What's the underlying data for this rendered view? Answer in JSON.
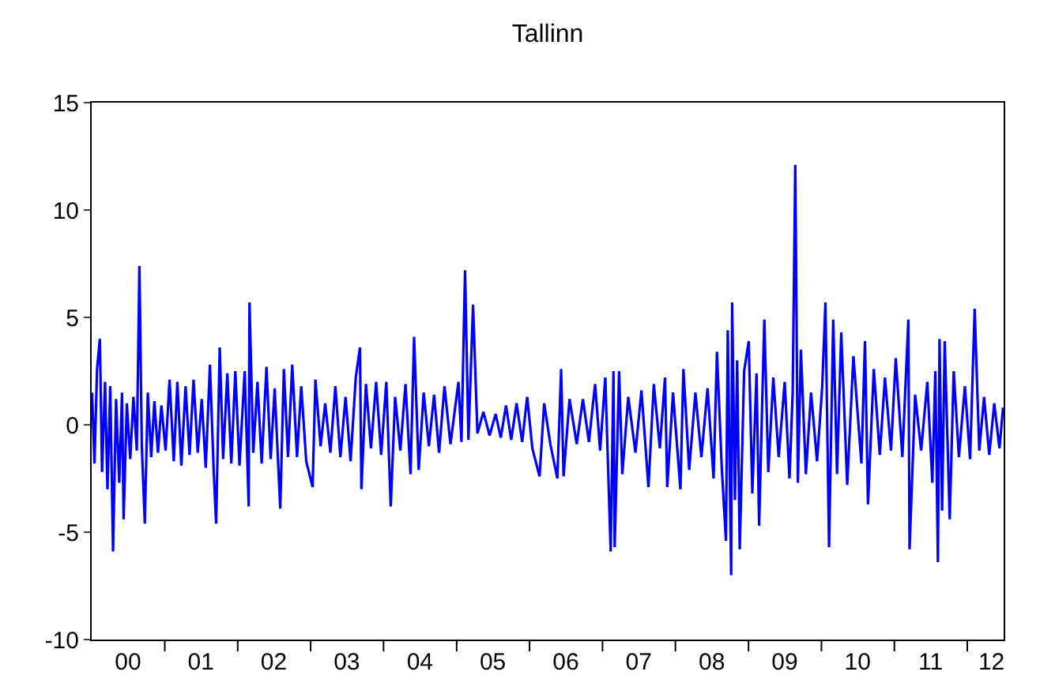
{
  "chart_data": {
    "type": "line",
    "title": "Tallinn",
    "grid": false,
    "marker": "none",
    "line_style": "solid",
    "xlim": [
      "2000-01-01",
      "2012-07-01"
    ],
    "xticks": [
      {
        "value": "2000-07-01",
        "label": "00"
      },
      {
        "value": "2001-01-01",
        "label": null
      },
      {
        "value": "2001-07-01",
        "label": "01"
      },
      {
        "value": "2002-01-01",
        "label": null
      },
      {
        "value": "2002-07-01",
        "label": "02"
      },
      {
        "value": "2003-01-01",
        "label": null
      },
      {
        "value": "2003-07-01",
        "label": "03"
      },
      {
        "value": "2004-01-01",
        "label": null
      },
      {
        "value": "2004-07-01",
        "label": "04"
      },
      {
        "value": "2005-01-01",
        "label": null
      },
      {
        "value": "2005-07-01",
        "label": "05"
      },
      {
        "value": "2006-01-01",
        "label": null
      },
      {
        "value": "2006-07-01",
        "label": "06"
      },
      {
        "value": "2007-01-01",
        "label": null
      },
      {
        "value": "2007-07-01",
        "label": "07"
      },
      {
        "value": "2008-01-01",
        "label": null
      },
      {
        "value": "2008-07-01",
        "label": "08"
      },
      {
        "value": "2009-01-01",
        "label": null
      },
      {
        "value": "2009-07-01",
        "label": "09"
      },
      {
        "value": "2010-01-01",
        "label": null
      },
      {
        "value": "2010-07-01",
        "label": "10"
      },
      {
        "value": "2011-01-01",
        "label": null
      },
      {
        "value": "2011-07-01",
        "label": "11"
      },
      {
        "value": "2012-01-01",
        "label": null
      },
      {
        "value": "2012-05-01",
        "label": "12"
      }
    ],
    "ylim": [
      -10,
      15
    ],
    "yticks": [
      -10,
      -5,
      0,
      5,
      10,
      15
    ],
    "x": [
      "2000-01-03",
      "2000-01-15",
      "2000-01-28",
      "2000-02-11",
      "2000-02-22",
      "2000-03-08",
      "2000-03-20",
      "2000-04-03",
      "2000-04-17",
      "2000-05-02",
      "2000-05-18",
      "2000-06-01",
      "2000-06-09",
      "2000-06-25",
      "2000-07-12",
      "2000-07-28",
      "2000-08-14",
      "2000-08-27",
      "2000-09-08",
      "2000-09-23",
      "2000-10-08",
      "2000-10-25",
      "2000-11-10",
      "2000-11-28",
      "2000-12-15",
      "2001-01-05",
      "2001-01-25",
      "2001-02-15",
      "2001-03-05",
      "2001-03-25",
      "2001-04-15",
      "2001-05-05",
      "2001-05-25",
      "2001-06-15",
      "2001-07-05",
      "2001-07-25",
      "2001-08-15",
      "2001-09-03",
      "2001-09-15",
      "2001-10-03",
      "2001-10-20",
      "2001-11-10",
      "2001-11-30",
      "2001-12-20",
      "2002-01-10",
      "2002-02-05",
      "2002-02-25",
      "2002-03-01",
      "2002-03-20",
      "2002-04-10",
      "2002-05-01",
      "2002-05-25",
      "2002-06-15",
      "2002-07-05",
      "2002-08-02",
      "2002-08-20",
      "2002-09-10",
      "2002-10-01",
      "2002-10-25",
      "2002-11-15",
      "2002-12-10",
      "2003-01-11",
      "2003-01-25",
      "2003-02-20",
      "2003-03-15",
      "2003-04-10",
      "2003-05-05",
      "2003-05-30",
      "2003-06-25",
      "2003-07-20",
      "2003-08-15",
      "2003-09-05",
      "2003-09-12",
      "2003-10-05",
      "2003-10-30",
      "2003-11-25",
      "2003-12-20",
      "2004-01-15",
      "2004-02-06",
      "2004-02-28",
      "2004-03-25",
      "2004-04-20",
      "2004-05-15",
      "2004-06-02",
      "2004-06-25",
      "2004-07-20",
      "2004-08-15",
      "2004-09-10",
      "2004-10-05",
      "2004-11-01",
      "2004-12-01",
      "2005-01-10",
      "2005-01-25",
      "2005-02-12",
      "2005-03-01",
      "2005-03-24",
      "2005-04-15",
      "2005-05-15",
      "2005-06-15",
      "2005-07-15",
      "2005-08-10",
      "2005-09-05",
      "2005-10-01",
      "2005-10-28",
      "2005-11-25",
      "2005-12-20",
      "2006-01-15",
      "2006-02-20",
      "2006-03-15",
      "2006-04-15",
      "2006-05-20",
      "2006-06-08",
      "2006-06-20",
      "2006-07-20",
      "2006-08-25",
      "2006-09-25",
      "2006-10-25",
      "2006-11-25",
      "2006-12-20",
      "2007-01-15",
      "2007-02-11",
      "2007-02-25",
      "2007-03-03",
      "2007-03-25",
      "2007-04-10",
      "2007-05-10",
      "2007-06-15",
      "2007-07-15",
      "2007-08-19",
      "2007-09-15",
      "2007-10-15",
      "2007-11-10",
      "2007-11-21",
      "2007-12-20",
      "2008-01-26",
      "2008-02-10",
      "2008-03-10",
      "2008-04-10",
      "2008-05-10",
      "2008-06-10",
      "2008-07-10",
      "2008-07-27",
      "2008-08-20",
      "2008-09-10",
      "2008-09-19",
      "2008-10-06",
      "2008-10-11",
      "2008-10-25",
      "2008-11-05",
      "2008-11-18",
      "2008-12-10",
      "2009-01-02",
      "2009-01-20",
      "2009-02-10",
      "2009-02-23",
      "2009-03-21",
      "2009-04-10",
      "2009-05-05",
      "2009-06-01",
      "2009-07-01",
      "2009-07-25",
      "2009-08-10",
      "2009-08-23",
      "2009-09-05",
      "2009-09-20",
      "2009-10-15",
      "2009-11-10",
      "2009-12-10",
      "2010-01-05",
      "2010-01-21",
      "2010-02-08",
      "2010-03-01",
      "2010-03-20",
      "2010-04-10",
      "2010-05-10",
      "2010-06-10",
      "2010-07-20",
      "2010-08-07",
      "2010-08-22",
      "2010-09-20",
      "2010-10-20",
      "2010-11-15",
      "2010-12-15",
      "2011-01-08",
      "2011-02-10",
      "2011-03-12",
      "2011-03-18",
      "2011-04-15",
      "2011-05-15",
      "2011-06-15",
      "2011-07-10",
      "2011-07-25",
      "2011-08-07",
      "2011-08-15",
      "2011-08-28",
      "2011-09-10",
      "2011-10-05",
      "2011-10-25",
      "2011-11-20",
      "2011-12-20",
      "2012-01-15",
      "2012-02-07",
      "2012-03-01",
      "2012-03-25",
      "2012-04-20",
      "2012-05-15",
      "2012-06-10",
      "2012-06-28"
    ],
    "series": [
      {
        "color": "#0000ff",
        "values": [
          1.5,
          -1.8,
          2.6,
          4.0,
          -2.2,
          2.0,
          -3.0,
          1.8,
          -5.9,
          1.2,
          -2.7,
          1.5,
          -4.4,
          1.0,
          -1.6,
          1.3,
          -1.2,
          7.4,
          -1.0,
          -4.6,
          1.5,
          -1.5,
          1.1,
          -1.3,
          0.9,
          -1.2,
          2.1,
          -1.7,
          2.0,
          -1.9,
          1.8,
          -1.4,
          2.1,
          -1.3,
          1.2,
          -2.0,
          2.8,
          -2.2,
          -4.6,
          3.6,
          -1.6,
          2.4,
          -1.8,
          2.5,
          -1.9,
          2.5,
          -3.8,
          5.7,
          -1.3,
          2.0,
          -1.8,
          2.7,
          -1.6,
          1.7,
          -3.9,
          2.6,
          -1.5,
          2.8,
          -1.5,
          1.8,
          -1.7,
          -2.9,
          2.1,
          -1.0,
          1.0,
          -1.3,
          1.8,
          -1.5,
          1.3,
          -1.7,
          2.2,
          3.6,
          -3.0,
          1.9,
          -1.1,
          2.0,
          -1.4,
          2.0,
          -3.8,
          1.3,
          -1.2,
          1.9,
          -2.3,
          4.1,
          -2.1,
          1.5,
          -1.0,
          1.4,
          -1.3,
          1.8,
          -0.9,
          2.0,
          -0.8,
          7.2,
          -0.7,
          5.6,
          -0.4,
          0.6,
          -0.5,
          0.5,
          -0.6,
          0.9,
          -0.7,
          1.0,
          -0.8,
          1.3,
          -1.1,
          -2.4,
          1.0,
          -0.9,
          -2.5,
          2.6,
          -2.4,
          1.2,
          -0.9,
          1.2,
          -0.8,
          1.9,
          -1.2,
          2.2,
          -5.9,
          2.5,
          -5.7,
          2.5,
          -2.3,
          1.3,
          -1.3,
          1.6,
          -2.9,
          1.9,
          -1.1,
          2.2,
          -2.9,
          1.5,
          -3.0,
          2.6,
          -2.1,
          1.5,
          -1.5,
          1.7,
          -2.5,
          3.4,
          -2.0,
          -5.4,
          4.4,
          -7.0,
          5.7,
          -3.5,
          3.0,
          -5.8,
          2.5,
          3.9,
          -3.2,
          2.4,
          -4.7,
          4.9,
          -2.2,
          2.2,
          -1.5,
          2.0,
          -2.5,
          1.5,
          12.1,
          -2.7,
          3.5,
          -2.3,
          1.5,
          -1.7,
          1.8,
          5.7,
          -5.7,
          4.9,
          -2.3,
          4.3,
          -2.8,
          3.2,
          -1.8,
          3.9,
          -3.7,
          2.6,
          -1.4,
          2.2,
          -1.2,
          3.1,
          -1.5,
          4.9,
          -5.8,
          1.4,
          -1.2,
          2.0,
          -2.7,
          2.5,
          -6.4,
          4.0,
          -4.0,
          3.9,
          -4.4,
          2.5,
          -1.5,
          1.8,
          -1.6,
          5.4,
          -1.2,
          1.3,
          -1.4,
          1.0,
          -1.1,
          0.8
        ]
      }
    ]
  }
}
